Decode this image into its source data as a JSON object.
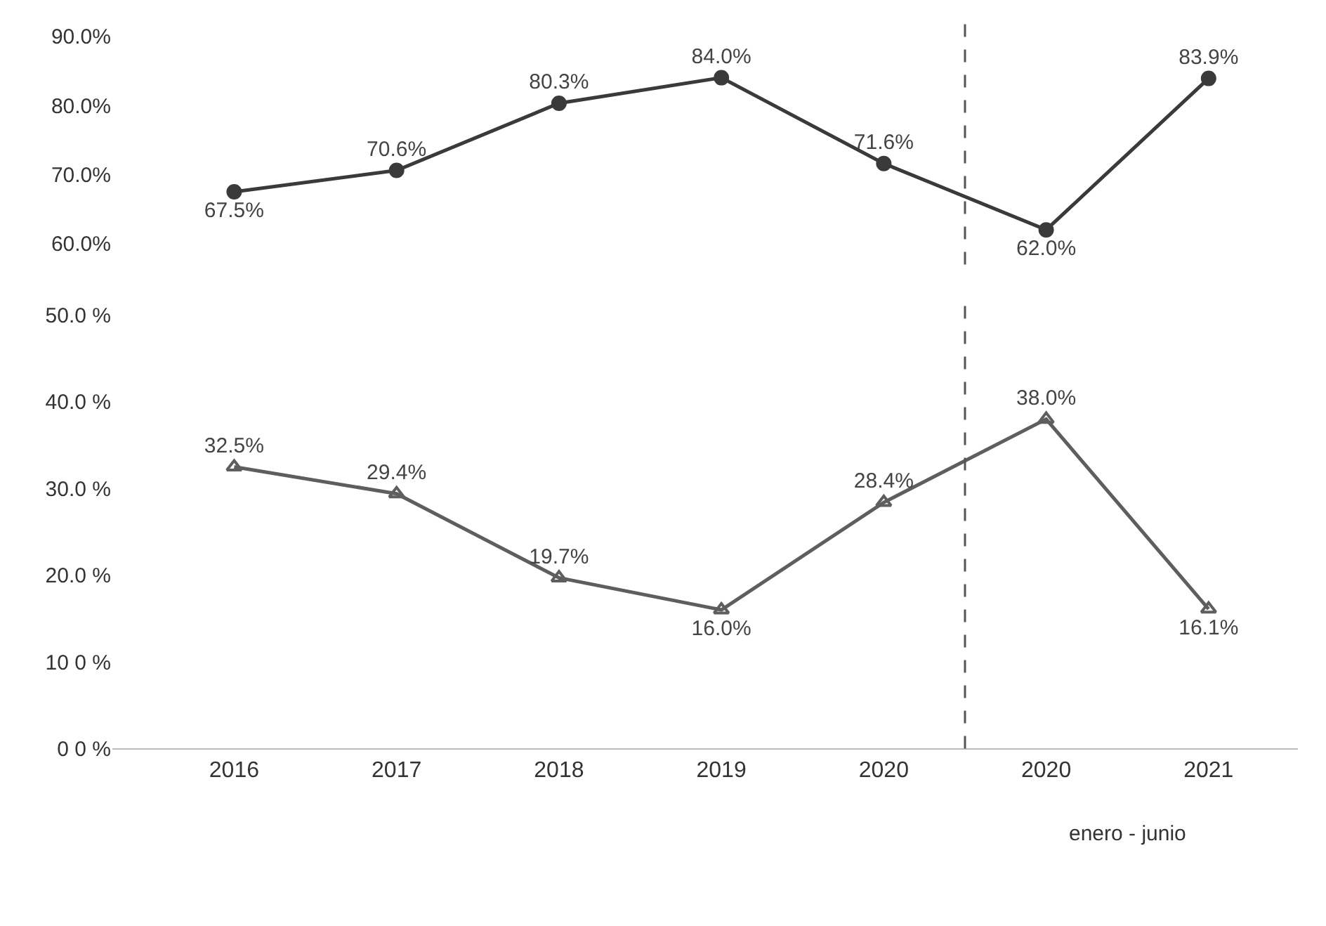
{
  "chart_data": [
    {
      "type": "line",
      "categories": [
        "2016",
        "2017",
        "2018",
        "2019",
        "2020",
        "2020",
        "2021"
      ],
      "series": [
        {
          "color": "#3a3a3a",
          "values": [
            67.5,
            70.6,
            80.3,
            84.0,
            71.6,
            62.0,
            83.9
          ],
          "value_labels": [
            "67.5%",
            "70.6%",
            "80.3%",
            "84.0%",
            "71.6%",
            "62.0%",
            "83.9%"
          ]
        }
      ],
      "ylim": [
        57,
        92
      ],
      "yticks": [
        {
          "value": 60,
          "label": "60.0%"
        },
        {
          "value": 70,
          "label": "70.0%"
        },
        {
          "value": 80,
          "label": "80.0%"
        },
        {
          "value": 90,
          "label": "90.0%"
        }
      ],
      "tick_labels": "y",
      "marker": "circle",
      "line_style": "solid"
    },
    {
      "type": "line",
      "categories": [
        "2016",
        "2017",
        "2018",
        "2019",
        "2020",
        "2020",
        "2021"
      ],
      "series": [
        {
          "color": "#5e5e5e",
          "values": [
            32.5,
            29.4,
            19.7,
            16.0,
            28.4,
            38.0,
            16.1
          ],
          "value_labels": [
            "32.5%",
            "29.4%",
            "19.7%",
            "16.0%",
            "28.4%",
            "38.0%",
            "16.1%"
          ]
        }
      ],
      "ylim": [
        0,
        52
      ],
      "yticks": [
        {
          "value": 0,
          "label": "0 0 %"
        },
        {
          "value": 10,
          "label": "10 0 %"
        },
        {
          "value": 20,
          "label": "20.0 %"
        },
        {
          "value": 30,
          "label": "30.0 %"
        },
        {
          "value": 40,
          "label": "40.0 %"
        },
        {
          "value": 50,
          "label": "50.0 %"
        }
      ],
      "marker": "triangle",
      "line_style": "solid",
      "annotations": [
        "enero - junio"
      ]
    }
  ]
}
